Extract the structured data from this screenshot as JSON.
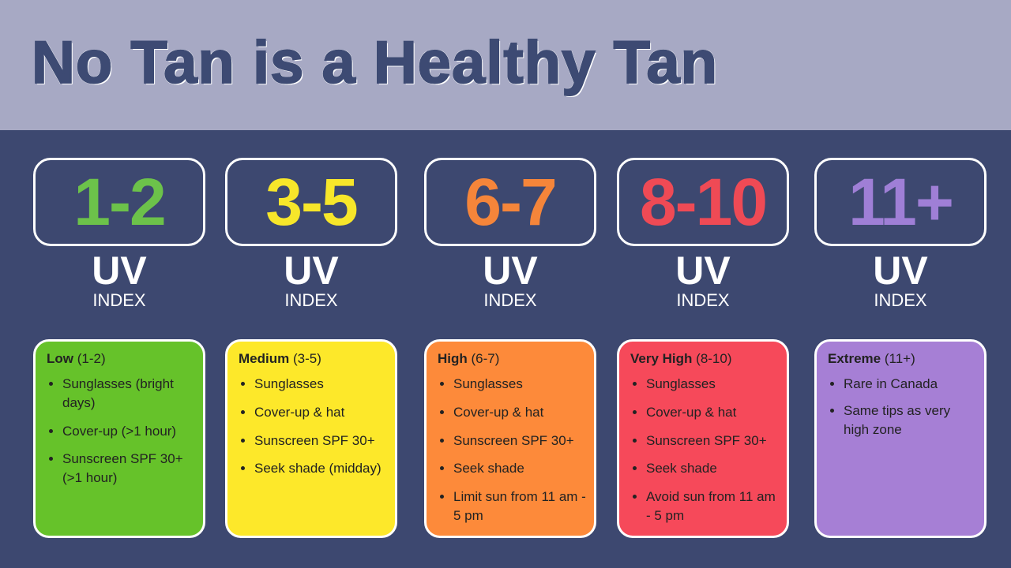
{
  "header": {
    "title": "No Tan is a Healthy Tan"
  },
  "columns": [
    {
      "range": "1-2",
      "uv": "UV",
      "index": "INDEX",
      "level": "Low",
      "level_range": "(1-2)",
      "tips": [
        "Sunglasses (bright days)",
        "Cover-up (>1 hour)",
        "Sunscreen SPF 30+ (>1 hour)"
      ]
    },
    {
      "range": "3-5",
      "uv": "UV",
      "index": "INDEX",
      "level": "Medium",
      "level_range": "(3-5)",
      "tips": [
        "Sunglasses",
        "Cover-up & hat",
        "Sunscreen SPF 30+",
        "Seek shade (midday)"
      ]
    },
    {
      "range": "6-7",
      "uv": "UV",
      "index": "INDEX",
      "level": "High",
      "level_range": "(6-7)",
      "tips": [
        "Sunglasses",
        "Cover-up & hat",
        "Sunscreen SPF 30+",
        "Seek shade",
        "Limit sun from 11 am - 5 pm"
      ]
    },
    {
      "range": "8-10",
      "uv": "UV",
      "index": "INDEX",
      "level": "Very High",
      "level_range": "(8-10)",
      "tips": [
        "Sunglasses",
        "Cover-up & hat",
        "Sunscreen SPF 30+",
        "Seek shade",
        "Avoid sun from 11 am - 5 pm"
      ]
    },
    {
      "range": "11+",
      "uv": "UV",
      "index": "INDEX",
      "level": "Extreme",
      "level_range": "(11+)",
      "tips": [
        "Rare in Canada",
        "Same tips as very high zone"
      ]
    }
  ]
}
